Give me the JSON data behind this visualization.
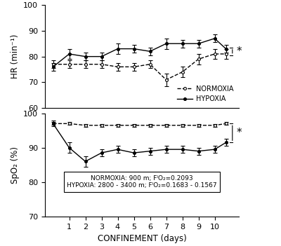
{
  "x": [
    0,
    1,
    2,
    3,
    4,
    5,
    6,
    7,
    8,
    9,
    10,
    10.7
  ],
  "hr_normoxia": [
    77,
    77,
    77,
    77,
    76,
    76,
    77,
    71,
    74,
    79,
    81,
    81
  ],
  "hr_normoxia_err": [
    1.5,
    1.5,
    1.5,
    1.5,
    1.5,
    1.5,
    1.5,
    2.5,
    2.0,
    2.0,
    2.0,
    2.0
  ],
  "hr_hypoxia": [
    76,
    81,
    80,
    80,
    83,
    83,
    82,
    85,
    85,
    85,
    87,
    83
  ],
  "hr_hypoxia_err": [
    1.5,
    2.0,
    1.5,
    1.5,
    2.0,
    1.5,
    1.5,
    2.0,
    1.5,
    1.5,
    1.5,
    1.5
  ],
  "spo2_normoxia": [
    97,
    97,
    96.5,
    96.5,
    96.5,
    96.5,
    96.5,
    96.5,
    96.5,
    96.5,
    96.5,
    97
  ],
  "spo2_normoxia_err": [
    0.4,
    0.4,
    0.4,
    0.4,
    0.4,
    0.4,
    0.4,
    0.4,
    0.4,
    0.4,
    0.4,
    0.4
  ],
  "spo2_hypoxia": [
    97,
    90,
    86,
    88.5,
    89.5,
    88.5,
    89,
    89.5,
    89.5,
    89,
    89.5,
    91.5
  ],
  "spo2_hypoxia_err": [
    0.8,
    1.5,
    1.5,
    1.0,
    1.0,
    1.0,
    1.0,
    1.0,
    1.0,
    1.0,
    1.0,
    1.0
  ],
  "hr_ylim": [
    60,
    100
  ],
  "spo2_ylim": [
    70,
    100
  ],
  "hr_yticks": [
    60,
    70,
    80,
    90,
    100
  ],
  "spo2_yticks": [
    70,
    80,
    90,
    100
  ],
  "xticks": [
    1,
    2,
    3,
    4,
    5,
    6,
    7,
    8,
    9,
    10
  ],
  "xlabel": "CONFINEMENT (days)",
  "hr_ylabel": "HR (min⁻¹)",
  "spo2_ylabel": "SpO₂ (%)",
  "legend_normoxia": "NORMOXIA",
  "legend_hypoxia": "HYPOXIA",
  "box_line1": "NORMOXIA: 900 m; FᴵO₂=0.2093",
  "box_line2": "HYPOXIA: 2800 - 3400 m; FᴵO₂=0.1683 - 0.1567",
  "line_color": "black",
  "background": "white",
  "hr_bracket_low": 80.5,
  "hr_bracket_high": 83.5,
  "spo2_bracket_low": 91.5,
  "spo2_bracket_high": 97.0
}
